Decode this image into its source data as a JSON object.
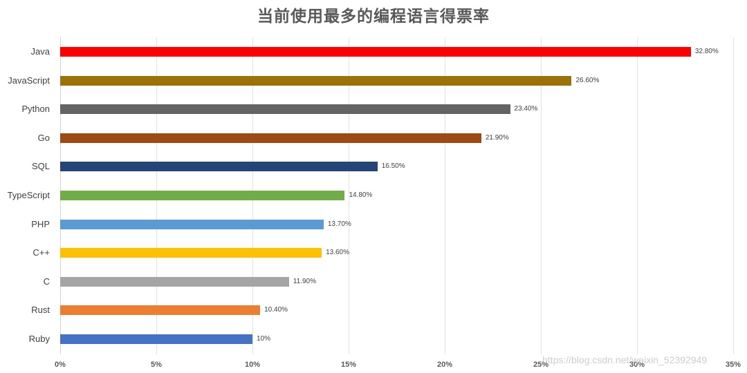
{
  "chart_data": {
    "type": "bar",
    "orientation": "horizontal",
    "title": "当前使用最多的编程语言得票率",
    "xlabel": "",
    "ylabel": "",
    "xlim": [
      0,
      35
    ],
    "grid": true,
    "legend": "none",
    "x_ticks": [
      "0%",
      "5%",
      "10%",
      "15%",
      "20%",
      "25%",
      "30%",
      "35%"
    ],
    "categories": [
      "Java",
      "JavaScript",
      "Python",
      "Go",
      "SQL",
      "TypeScript",
      "PHP",
      "C++",
      "C",
      "Rust",
      "Ruby"
    ],
    "values": [
      32.8,
      26.6,
      23.4,
      21.9,
      16.5,
      14.8,
      13.7,
      13.6,
      11.9,
      10.4,
      10.0
    ],
    "data_labels": [
      "32.80%",
      "26.60%",
      "23.40%",
      "21.90%",
      "16.50%",
      "14.80%",
      "13.70%",
      "13.60%",
      "11.90%",
      "10.40%",
      "10%"
    ],
    "colors": [
      "#ff0000",
      "#9a7208",
      "#646464",
      "#9e4a12",
      "#254478",
      "#70ad47",
      "#5b9bd5",
      "#ffc000",
      "#a5a5a5",
      "#ed7d31",
      "#4472c4"
    ]
  },
  "watermark": "https://blog.csdn.net/weixin_52392949"
}
